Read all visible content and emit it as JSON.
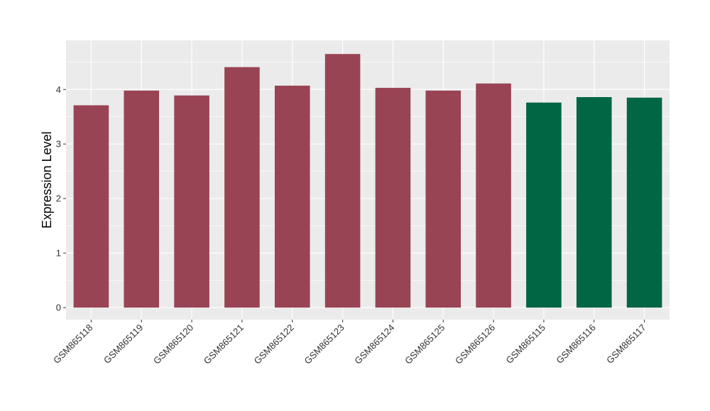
{
  "chart_data": {
    "type": "bar",
    "title": "",
    "xlabel": "",
    "ylabel": "Expression Level",
    "categories": [
      "GSM865118",
      "GSM865119",
      "GSM865120",
      "GSM865121",
      "GSM865122",
      "GSM865123",
      "GSM865124",
      "GSM865125",
      "GSM865126",
      "GSM865115",
      "GSM865116",
      "GSM865117"
    ],
    "values": [
      3.71,
      3.98,
      3.89,
      4.41,
      4.07,
      4.65,
      4.03,
      3.98,
      4.11,
      3.76,
      3.86,
      3.85
    ],
    "bar_colors": [
      "#994455",
      "#994455",
      "#994455",
      "#994455",
      "#994455",
      "#994455",
      "#994455",
      "#994455",
      "#994455",
      "#006644",
      "#006644",
      "#006644"
    ],
    "ylim": [
      -0.22,
      4.9
    ],
    "yticks": [
      0,
      1,
      2,
      3,
      4
    ],
    "ytick_labels": [
      "0",
      "1",
      "2",
      "3",
      "4"
    ],
    "grid": true,
    "panel_background": "#EBEBEB",
    "grid_color": "#FFFFFF"
  }
}
